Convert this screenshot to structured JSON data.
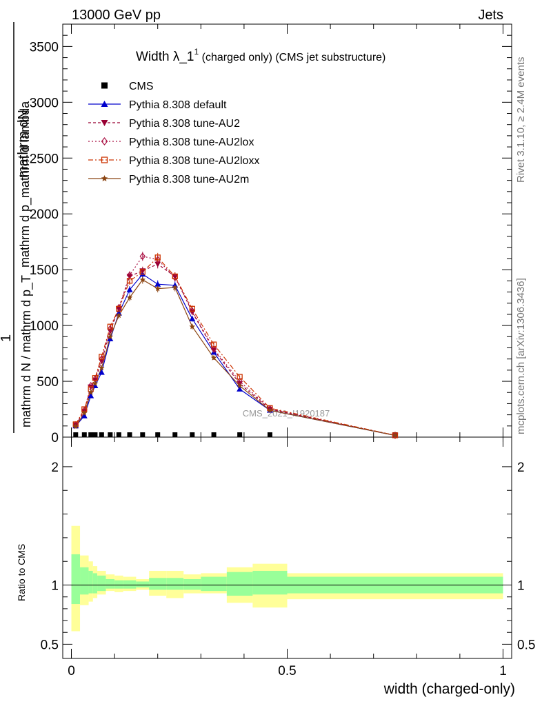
{
  "header": {
    "left": "13000 GeV pp",
    "right": "Jets"
  },
  "title": {
    "main": "Width λ_1",
    "sup": "1",
    "suffix": " (charged only) (CMS jet substructure)"
  },
  "side_labels": {
    "rivet": "Rivet 3.1.10, ≥ 2.4M events",
    "mcplots": "mcplots.cern.ch [arXiv:1306.3436]"
  },
  "watermark": "CMS_2021_I1920187",
  "main_ylabel": {
    "numerator": "mathrm dN",
    "one": "1",
    "frac_denominator_1": "mathrm d p_mathrm d lambda",
    "frac_denominator_2": "mathrm d N / mathrm d p_T",
    "denominator_bottom": "mathrm d N / mathrm d p mathrm d p T"
  },
  "ratio_ylabel": "Ratio to CMS",
  "xlabel": "width (charged-only)",
  "chart_data": {
    "type": "line",
    "main": {
      "xlim": [
        -0.02,
        1.02
      ],
      "ylim": [
        0,
        3700
      ],
      "yticks": [
        {
          "v": 0,
          "label": "0"
        },
        {
          "v": 500,
          "label": "500"
        },
        {
          "v": 1000,
          "label": "1000"
        },
        {
          "v": 1500,
          "label": "1500"
        },
        {
          "v": 2000,
          "label": "2000"
        },
        {
          "v": 2500,
          "label": "2500"
        },
        {
          "v": 3000,
          "label": "3000"
        },
        {
          "v": 3500,
          "label": "3500"
        }
      ]
    },
    "ratio": {
      "ylim": [
        0.38,
        2.25
      ],
      "yticks": [
        {
          "v": 0.5,
          "label": "0.5"
        },
        {
          "v": 1,
          "label": "1"
        },
        {
          "v": 2,
          "label": "2"
        }
      ]
    },
    "xticks": [
      {
        "v": 0,
        "label": "0"
      },
      {
        "v": 0.5,
        "label": "0.5"
      },
      {
        "v": 1,
        "label": "1"
      }
    ],
    "bin_edges": [
      0.0,
      0.02,
      0.04,
      0.05,
      0.06,
      0.08,
      0.1,
      0.12,
      0.15,
      0.18,
      0.22,
      0.26,
      0.3,
      0.36,
      0.42,
      0.5,
      1.0
    ],
    "x": [
      0.01,
      0.03,
      0.045,
      0.055,
      0.07,
      0.09,
      0.11,
      0.135,
      0.165,
      0.2,
      0.24,
      0.28,
      0.33,
      0.39,
      0.46,
      0.75
    ],
    "series": [
      {
        "name": "CMS",
        "color": "#000000",
        "marker": "square",
        "dash": "none",
        "values": [
          9,
          9,
          9,
          9,
          9,
          9,
          9,
          9,
          9,
          9,
          9,
          9,
          9,
          9,
          9,
          9
        ]
      },
      {
        "name": "Pythia 8.308 default",
        "color": "#0000cc",
        "marker": "triangle",
        "dash": "none",
        "values": [
          100,
          190,
          370,
          460,
          580,
          880,
          1110,
          1320,
          1460,
          1370,
          1360,
          1060,
          760,
          430,
          240,
          15
        ]
      },
      {
        "name": "Pythia 8.308 tune-AU2",
        "color": "#990033",
        "marker": "triangle-down",
        "dash": "4,3",
        "values": [
          110,
          230,
          450,
          510,
          680,
          950,
          1150,
          1440,
          1490,
          1550,
          1440,
          1120,
          780,
          480,
          250,
          16
        ]
      },
      {
        "name": "Pythia 8.308 tune-AU2lox",
        "color": "#aa1144",
        "marker": "diamond",
        "dash": "2,3",
        "values": [
          110,
          240,
          460,
          520,
          700,
          970,
          1160,
          1450,
          1620,
          1590,
          1430,
          1130,
          790,
          500,
          255,
          16
        ]
      },
      {
        "name": "Pythia 8.308 tune-AU2loxx",
        "color": "#cc3300",
        "marker": "open-square",
        "dash": "7,3,2,3",
        "values": [
          115,
          250,
          430,
          530,
          720,
          990,
          1150,
          1400,
          1480,
          1610,
          1440,
          1150,
          830,
          540,
          260,
          16
        ]
      },
      {
        "name": "Pythia 8.308 tune-AU2m",
        "color": "#8b4513",
        "marker": "star",
        "dash": "none",
        "values": [
          95,
          215,
          400,
          480,
          620,
          900,
          1090,
          1250,
          1410,
          1330,
          1340,
          990,
          710,
          460,
          240,
          15
        ]
      }
    ],
    "ratio_band_inner": [
      [
        0.84,
        1.26
      ],
      [
        0.92,
        1.15
      ],
      [
        0.93,
        1.12
      ],
      [
        0.93,
        1.1
      ],
      [
        0.95,
        1.08
      ],
      [
        0.97,
        1.05
      ],
      [
        0.97,
        1.04
      ],
      [
        0.97,
        1.04
      ],
      [
        0.98,
        1.03
      ],
      [
        0.96,
        1.06
      ],
      [
        0.96,
        1.06
      ],
      [
        0.96,
        1.05
      ],
      [
        0.95,
        1.07
      ],
      [
        0.91,
        1.11
      ],
      [
        0.92,
        1.12
      ],
      [
        0.93,
        1.07
      ]
    ],
    "ratio_band_outer": [
      [
        0.61,
        1.5
      ],
      [
        0.83,
        1.25
      ],
      [
        0.86,
        1.2
      ],
      [
        0.89,
        1.16
      ],
      [
        0.92,
        1.12
      ],
      [
        0.95,
        1.09
      ],
      [
        0.94,
        1.08
      ],
      [
        0.95,
        1.07
      ],
      [
        0.96,
        1.05
      ],
      [
        0.91,
        1.12
      ],
      [
        0.89,
        1.12
      ],
      [
        0.93,
        1.09
      ],
      [
        0.93,
        1.1
      ],
      [
        0.85,
        1.15
      ],
      [
        0.81,
        1.18
      ],
      [
        0.88,
        1.1
      ]
    ],
    "ratio_reference": 1
  }
}
